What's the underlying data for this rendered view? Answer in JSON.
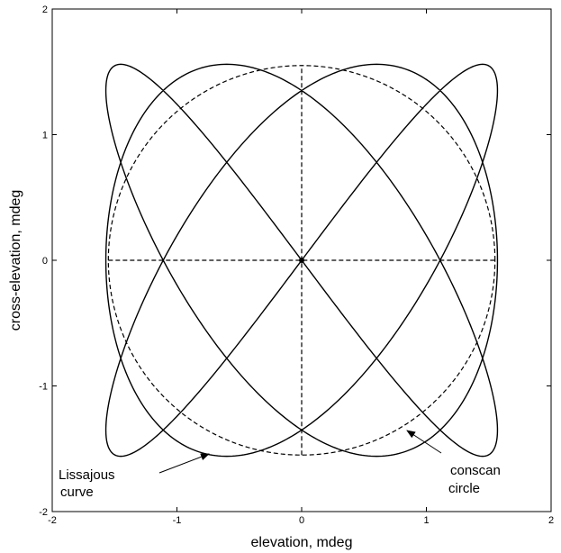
{
  "chart_data": {
    "type": "line",
    "title": "",
    "xlabel": "elevation, mdeg",
    "ylabel": "cross-elevation, mdeg",
    "xlim": [
      -2,
      2
    ],
    "ylim": [
      -2,
      2
    ],
    "x_ticks": [
      -2,
      -1,
      0,
      1,
      2
    ],
    "y_ticks": [
      -2,
      -1,
      0,
      1,
      2
    ],
    "grid": false,
    "series": [
      {
        "style": "solid",
        "equation": {
          "x": "1.57*sin(3*t)",
          "y": "1.56*sin(4*t)",
          "t_range": [
            0,
            6.2832
          ]
        }
      },
      {
        "style": "dashed",
        "equation": {
          "x": "1.55*cos(t)",
          "y": "1.55*sin(t)",
          "t_range": [
            0,
            6.2832
          ]
        }
      },
      {
        "style": "dashed",
        "x": [
          -1.55,
          1.55
        ],
        "y": [
          0,
          0
        ]
      },
      {
        "style": "dashed",
        "x": [
          0,
          0
        ],
        "y": [
          -1.55,
          1.55
        ]
      }
    ],
    "annotations": [
      {
        "lines": [
          "Lissajous",
          "curve"
        ],
        "points_to": [
          -0.75,
          -1.53
        ]
      },
      {
        "lines": [
          "conscan",
          "circle"
        ],
        "points_to": [
          0.95,
          -1.28
        ]
      }
    ],
    "colors": {
      "line": "#000000",
      "background": "#ffffff"
    }
  }
}
